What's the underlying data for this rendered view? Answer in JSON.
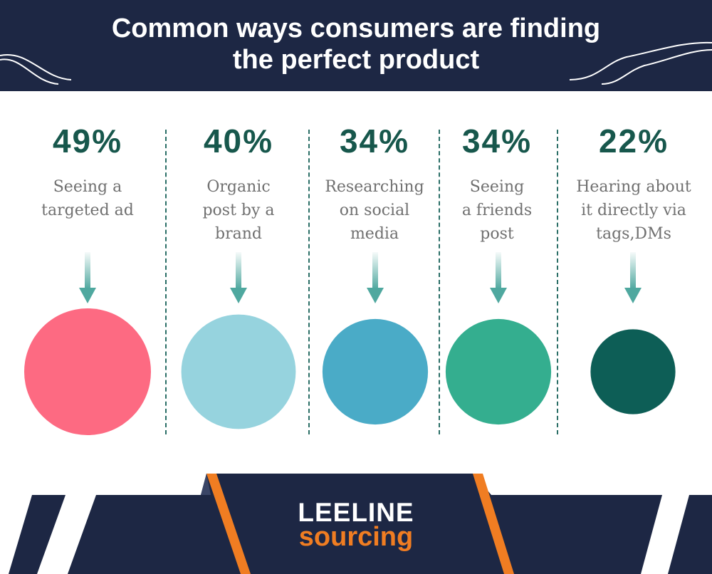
{
  "title_lines": [
    "Common ways consumers are finding",
    "the perfect product"
  ],
  "colors": {
    "navy": "#1d2744",
    "teal_text": "#17574c",
    "gray_text": "#707070",
    "arrow": "#4fa89f",
    "orange": "#f07d22"
  },
  "chart_data": {
    "type": "bubble",
    "title": "Common ways consumers are finding the perfect product",
    "categories": [
      "Seeing a targeted ad",
      "Organic post by a brand",
      "Researching on social media",
      "Seeing a friends post",
      "Hearing about it directly via tags,DMs"
    ],
    "values": [
      49,
      40,
      34,
      34,
      22
    ],
    "unit": "%"
  },
  "items": [
    {
      "pct": "49%",
      "desc": "Seeing a\ntargeted ad",
      "color": "#fd6a82"
    },
    {
      "pct": "40%",
      "desc": "Organic\npost by a\nbrand",
      "color": "#96d3de"
    },
    {
      "pct": "34%",
      "desc": "Researching\non social\nmedia",
      "color": "#4aabc7"
    },
    {
      "pct": "34%",
      "desc": "Seeing\na friends\npost",
      "color": "#34ae8f"
    },
    {
      "pct": "22%",
      "desc": "Hearing about\nit directly via\ntags,DMs",
      "color": "#0d5e56"
    }
  ],
  "logo": {
    "line1": "LEELINE",
    "line2": "sourcing"
  }
}
